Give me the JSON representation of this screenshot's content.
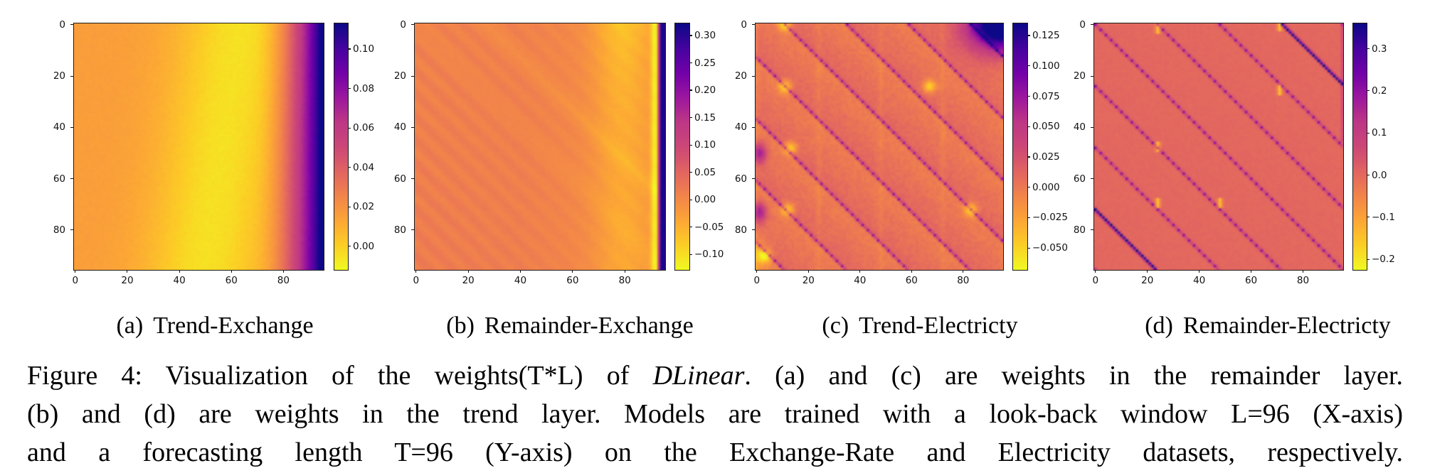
{
  "figure": {
    "subcaptions": [
      {
        "tag": "(a)",
        "text": "Trend-Exchange"
      },
      {
        "tag": "(b)",
        "text": "Remainder-Exchange"
      },
      {
        "tag": "(c)",
        "text": "Trend-Electricty"
      },
      {
        "tag": "(d)",
        "text": "Remainder-Electricty"
      }
    ],
    "caption": {
      "line1_prefix": "Figure 4: Visualization of the weights(T*L) of ",
      "line1_italic": "DLinear",
      "line1_suffix": ". (a) and (c) are weights in the remainder layer.",
      "line2": "(b) and (d) are weights in the trend layer. Models are trained with a look-back window L=96 (X-axis)",
      "line3": "and a forecasting length T=96 (Y-axis) on the Exchange-Rate and Electricity datasets, respectively."
    }
  },
  "chart_data": [
    {
      "type": "heatmap",
      "panel": "a",
      "title": "(a) Trend-Exchange",
      "matrix_size": [
        96,
        96
      ],
      "x_ticks": [
        0,
        20,
        40,
        60,
        80
      ],
      "y_ticks": [
        0,
        20,
        40,
        60,
        80
      ],
      "x_range": [
        0,
        96
      ],
      "y_range": [
        0,
        96
      ],
      "vmin": -0.012,
      "vmax": 0.113,
      "colormap": "plasma_r",
      "grid": false,
      "colorbar_ticks": [
        {
          "v": 0.1,
          "label": "0.10"
        },
        {
          "v": 0.08,
          "label": "0.08"
        },
        {
          "v": 0.06,
          "label": "0.06"
        },
        {
          "v": 0.04,
          "label": "0.04"
        },
        {
          "v": 0.02,
          "label": "0.02"
        },
        {
          "v": 0.0,
          "label": "0.00"
        }
      ],
      "pattern": {
        "name": "trend_exchange",
        "description": "smooth field ~0.01-0.02 on left, bright low-value band near column 50-65, monotone rise to ~0.11 (dark) at right edge",
        "base": 0.016,
        "dip_depth": 0.021,
        "dip_width": 23,
        "dip_center_top": 63,
        "dip_center_bottom": 50,
        "rise_start": 68,
        "rise_span": 28,
        "rise_amp": 0.115,
        "rise_pow": 2.0
      }
    },
    {
      "type": "heatmap",
      "panel": "b",
      "title": "(b) Remainder-Exchange",
      "matrix_size": [
        96,
        96
      ],
      "x_ticks": [
        0,
        20,
        40,
        60,
        80
      ],
      "y_ticks": [
        0,
        20,
        40,
        60,
        80
      ],
      "x_range": [
        0,
        96
      ],
      "y_range": [
        0,
        96
      ],
      "vmin": -0.128,
      "vmax": 0.322,
      "colormap": "plasma_r",
      "grid": false,
      "colorbar_ticks": [
        {
          "v": 0.3,
          "label": "0.30"
        },
        {
          "v": 0.25,
          "label": "0.25"
        },
        {
          "v": 0.2,
          "label": "0.20"
        },
        {
          "v": 0.15,
          "label": "0.15"
        },
        {
          "v": 0.1,
          "label": "0.10"
        },
        {
          "v": 0.05,
          "label": "0.05"
        },
        {
          "v": 0.0,
          "label": "0.00"
        },
        {
          "v": -0.05,
          "label": "−0.05"
        },
        {
          "v": -0.1,
          "label": "−0.10"
        }
      ],
      "pattern": {
        "name": "remainder_exchange",
        "description": "orange field ~0 with faint diagonal streaks, bright low-value wash near columns 65-92 (strongest at top), bright column ~91, dark high-value (~0.31) vertical stripe at columns 93-95",
        "base": 0.01,
        "streak_period": 9,
        "streak_amp": 0.008,
        "wash_center": 79,
        "wash_width": 11,
        "wash_amp": 0.035,
        "wash_top_extra": 0.032,
        "diag_bright_offsets": [
          0,
          27
        ],
        "bright_col_center": 91.5,
        "bright_col_amp": 0.1,
        "dark_col_start": 93.2,
        "dark_col_val": 0.31
      }
    },
    {
      "type": "heatmap",
      "panel": "c",
      "title": "(c) Trend-Electricty",
      "matrix_size": [
        96,
        96
      ],
      "x_ticks": [
        0,
        20,
        40,
        60,
        80
      ],
      "y_ticks": [
        0,
        20,
        40,
        60,
        80
      ],
      "x_range": [
        0,
        96
      ],
      "y_range": [
        0,
        96
      ],
      "vmin": -0.068,
      "vmax": 0.135,
      "colormap": "plasma_r",
      "grid": false,
      "colorbar_ticks": [
        {
          "v": 0.125,
          "label": "0.125"
        },
        {
          "v": 0.1,
          "label": "0.100"
        },
        {
          "v": 0.075,
          "label": "0.075"
        },
        {
          "v": 0.05,
          "label": "0.050"
        },
        {
          "v": 0.025,
          "label": "0.025"
        },
        {
          "v": 0.0,
          "label": "0.000"
        },
        {
          "v": -0.025,
          "label": "−0.025"
        },
        {
          "v": -0.05,
          "label": "−0.050"
        }
      ],
      "pattern": {
        "name": "trend_electricity",
        "description": "periodicity-24 dotted dark diagonals (offset 11), sawtooth block shading, dark high-value patch in top-right corner, bright yellow anomaly spots, purple smudges at left edge",
        "period": 24,
        "diag_phase": 11,
        "saw_amp": 0.016,
        "dot_strong": 0.07,
        "dot_weak": 0.03,
        "corner_amp": 0.17,
        "corner_wi": 10,
        "corner_wj": 13,
        "bright_spots": [
          [
            0,
            11
          ],
          [
            24,
            11
          ],
          [
            24,
            67
          ],
          [
            48,
            13
          ],
          [
            72,
            12
          ],
          [
            72,
            83
          ],
          [
            90,
            3
          ]
        ],
        "spot_amp": 0.055,
        "purple_spots": [
          [
            50,
            1
          ],
          [
            73,
            1
          ]
        ],
        "purple_amp": 0.07
      }
    },
    {
      "type": "heatmap",
      "panel": "d",
      "title": "(d) Remainder-Electricty",
      "matrix_size": [
        96,
        96
      ],
      "x_ticks": [
        0,
        20,
        40,
        60,
        80
      ],
      "y_ticks": [
        0,
        20,
        40,
        60,
        80
      ],
      "x_range": [
        0,
        96
      ],
      "y_range": [
        0,
        96
      ],
      "vmin": -0.225,
      "vmax": 0.36,
      "colormap": "plasma_r",
      "grid": false,
      "colorbar_ticks": [
        {
          "v": 0.3,
          "label": "0.3"
        },
        {
          "v": 0.2,
          "label": "0.2"
        },
        {
          "v": 0.1,
          "label": "0.1"
        },
        {
          "v": 0.0,
          "label": "0.0"
        },
        {
          "v": -0.1,
          "label": "−0.1"
        },
        {
          "v": -0.2,
          "label": "−0.2"
        }
      ],
      "pattern": {
        "name": "remainder_electricity",
        "description": "crisp dark navy dotted diagonals every 24 (offsets 0, ±24, ±48, ±72), extra-dark diagonals at offsets ±72, short bright yellow vertical ticks near columns 24/48/72",
        "period": 24,
        "diag_phase": 0,
        "saw_amp": 0.006,
        "dot_strong": 0.21,
        "dot_weak": 0.07,
        "heavy_offset": 72,
        "heavy_strong": 0.37,
        "heavy_base": 0.3,
        "bright_ticks": [
          [
            0,
            3,
            24
          ],
          [
            0,
            2,
            71
          ],
          [
            24,
            27,
            71
          ],
          [
            46,
            49,
            24
          ],
          [
            68,
            71,
            24
          ],
          [
            68,
            71,
            48
          ]
        ],
        "tick_amp": 0.15
      }
    }
  ],
  "colors": {
    "background": "#ffffff",
    "axis_spine": "#1a1a1a",
    "tick_color": "#111111",
    "text_color": "#000000",
    "colormap_high": "#0d0887",
    "colormap_low": "#f0f921"
  }
}
